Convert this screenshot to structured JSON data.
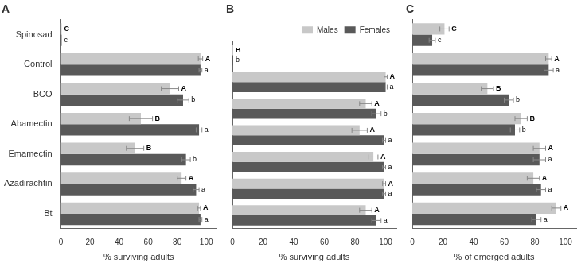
{
  "chart_data": [
    {
      "type": "bar",
      "orientation": "horizontal",
      "title": "A",
      "categories": [
        "Spinosad",
        "Control",
        "BCO",
        "Abamectin",
        "Emamectin",
        "Azadirachtin",
        "Bt"
      ],
      "x_label": "% surviving adults",
      "xlim": [
        0,
        107
      ],
      "xticks": [
        0,
        20,
        40,
        60,
        80,
        100
      ],
      "grid": false,
      "series": [
        {
          "name": "Males",
          "color": "#c8c8c8",
          "values": [
            0.5,
            96,
            75,
            55,
            51,
            83,
            95
          ],
          "errors": [
            0,
            1.5,
            6,
            8,
            6,
            3,
            1
          ],
          "annotations": [
            "C",
            "A",
            "A",
            "B",
            "B",
            "A",
            "A"
          ]
        },
        {
          "name": "Females",
          "color": "#595959",
          "values": [
            0.5,
            96,
            84,
            95,
            86,
            93,
            96
          ],
          "errors": [
            0,
            1,
            4,
            2,
            3,
            2,
            1
          ],
          "annotations": [
            "c",
            "a",
            "b",
            "a",
            "b",
            "a",
            "a"
          ]
        }
      ]
    },
    {
      "type": "bar",
      "orientation": "horizontal",
      "title": "B",
      "categories": [
        "Spinosad",
        "Control",
        "BCO",
        "Abamectin",
        "Emamectin",
        "Azadirachtin",
        "Bt"
      ],
      "x_label": "% surviving adults",
      "xlim": [
        0,
        107
      ],
      "xticks": [
        0,
        20,
        40,
        60,
        80,
        100
      ],
      "grid": false,
      "tick_labels": "x",
      "legend": "upper right",
      "series": [
        {
          "name": "Males",
          "color": "#c8c8c8",
          "values": [
            0.5,
            100,
            87,
            83,
            92,
            99,
            87
          ],
          "errors": [
            0,
            1,
            4,
            5,
            3,
            1,
            4
          ],
          "annotations": [
            "B",
            "A",
            "A",
            "A",
            "A",
            "A",
            "A"
          ]
        },
        {
          "name": "Females",
          "color": "#595959",
          "values": [
            0.5,
            100,
            94,
            99,
            99,
            99,
            94
          ],
          "errors": [
            0,
            1,
            3,
            1,
            1,
            1,
            3
          ],
          "annotations": [
            "b",
            "a",
            "b",
            "a",
            "a",
            "a",
            "a"
          ]
        }
      ]
    },
    {
      "type": "bar",
      "orientation": "horizontal",
      "title": "C",
      "categories": [
        "Spinosad",
        "Control",
        "BCO",
        "Abamectin",
        "Emamectin",
        "Azadirachtin",
        "Bt"
      ],
      "x_label": "% of emerged adults",
      "xlim": [
        0,
        107
      ],
      "xticks": [
        0,
        20,
        40,
        60,
        80,
        100
      ],
      "grid": false,
      "tick_labels": "x",
      "series": [
        {
          "name": "Males",
          "color": "#c8c8c8",
          "values": [
            21,
            89,
            49,
            71,
            83,
            79,
            94
          ],
          "errors": [
            3,
            2,
            4,
            4,
            4,
            4,
            3
          ],
          "annotations": [
            "C",
            "A",
            "B",
            "B",
            "A",
            "A",
            "A"
          ]
        },
        {
          "name": "Females",
          "color": "#595959",
          "values": [
            13,
            89,
            63,
            67,
            83,
            84,
            81
          ],
          "errors": [
            2,
            3,
            3,
            3,
            4,
            3,
            3
          ],
          "annotations": [
            "c",
            "a",
            "b",
            "b",
            "a",
            "a",
            "a"
          ]
        }
      ]
    }
  ]
}
